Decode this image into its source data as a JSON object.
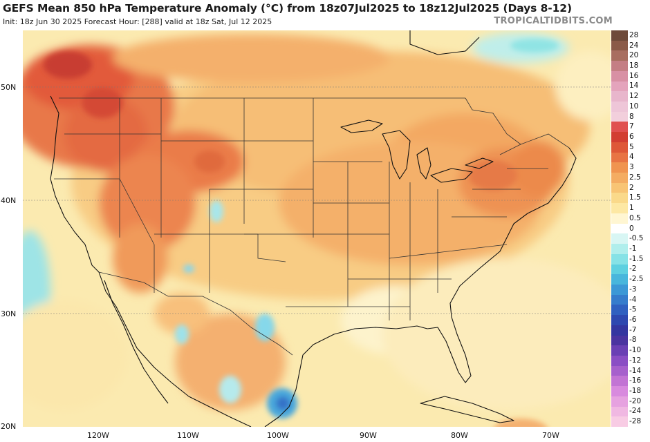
{
  "header": {
    "title": "GEFS Mean 850 hPa Temperature Anomaly (°C) from 18z07Jul2025 to 18z12Jul2025 (Days 8-12)",
    "subtitle": "Init: 18z Jun 30 2025   Forecast Hour: [288]   valid at 18z Sat, Jul 12 2025",
    "brand": "TROPICALTIDBITS.COM"
  },
  "map": {
    "region": "Contiguous United States, southern Canada, Mexico",
    "lat_labels": [
      "50N",
      "40N",
      "30N",
      "20N"
    ],
    "lon_labels": [
      "120W",
      "110W",
      "100W",
      "90W",
      "80W",
      "70W"
    ]
  },
  "colorbar": {
    "labels": [
      "28",
      "24",
      "20",
      "18",
      "16",
      "14",
      "12",
      "10",
      "8",
      "7",
      "6",
      "5",
      "4",
      "3",
      "2.5",
      "2",
      "1.5",
      "1",
      "0.5",
      "0",
      "-0.5",
      "-1",
      "-1.5",
      "-2",
      "-2.5",
      "-3",
      "-4",
      "-5",
      "-6",
      "-7",
      "-8",
      "-10",
      "-12",
      "-14",
      "-16",
      "-18",
      "-20",
      "-24",
      "-28"
    ],
    "colors": [
      "#6e4a3a",
      "#8a5a48",
      "#a86e60",
      "#c47e84",
      "#d890a4",
      "#e4a4bc",
      "#e8b6cc",
      "#eec6d8",
      "#f2cfdc",
      "#e05050",
      "#d23e32",
      "#de5838",
      "#e87444",
      "#f09450",
      "#f4ac62",
      "#f8c474",
      "#fad98a",
      "#fde8a4",
      "#fff6d2",
      "#ffffff",
      "#d8f6f4",
      "#b0eeec",
      "#86e2e6",
      "#5ed0e0",
      "#48b6dc",
      "#3c98d6",
      "#367ccc",
      "#3060c0",
      "#2e48b0",
      "#3436a0",
      "#4a34a0",
      "#6a40b4",
      "#8a4ec4",
      "#a660cc",
      "#c274d4",
      "#d88ade",
      "#e6a2e0",
      "#f0b8e2",
      "#f8cce4"
    ]
  }
}
